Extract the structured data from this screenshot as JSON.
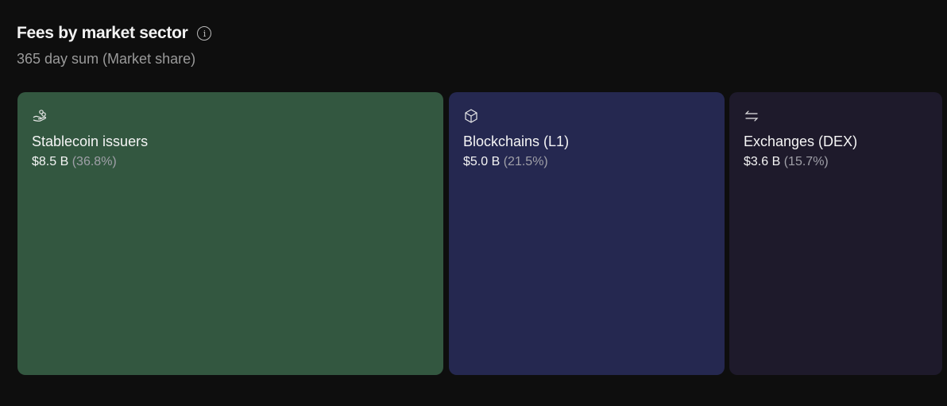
{
  "header": {
    "title": "Fees by market sector",
    "info_icon": "info-icon",
    "subtitle": "365 day sum (Market share)"
  },
  "sectors": [
    {
      "name": "Stablecoin issuers",
      "value": "$8.5 B",
      "share": "(36.8%)",
      "icon": "hand-coins-icon",
      "color": "#335740"
    },
    {
      "name": "Blockchains (L1)",
      "value": "$5.0 B",
      "share": "(21.5%)",
      "icon": "cube-icon",
      "color": "#252850"
    },
    {
      "name": "Exchanges (DEX)",
      "value": "$3.6 B",
      "share": "(15.7%)",
      "icon": "arrows-exchange-icon",
      "color": "#1e1a2b"
    }
  ]
}
